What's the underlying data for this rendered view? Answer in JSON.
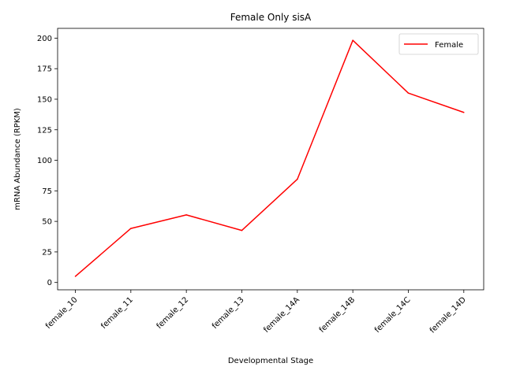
{
  "chart_data": {
    "type": "line",
    "title": "Female Only sisA",
    "xlabel": "Developmental Stage",
    "ylabel": "mRNA Abundance (RPKM)",
    "categories": [
      "female_10",
      "female_11",
      "female_12",
      "female_13",
      "female_14A",
      "female_14B",
      "female_14C",
      "female_14D"
    ],
    "series": [
      {
        "name": "Female",
        "color": "#ff0000",
        "values": [
          5.0,
          44.2,
          55.3,
          42.6,
          84.5,
          198.2,
          155.0,
          139.2
        ]
      }
    ],
    "ylim": [
      -6,
      208
    ],
    "yticks": [
      0,
      25,
      50,
      75,
      100,
      125,
      150,
      175,
      200
    ],
    "grid": false,
    "legend_position": "upper right",
    "x_tick_rotation_deg": 45
  }
}
